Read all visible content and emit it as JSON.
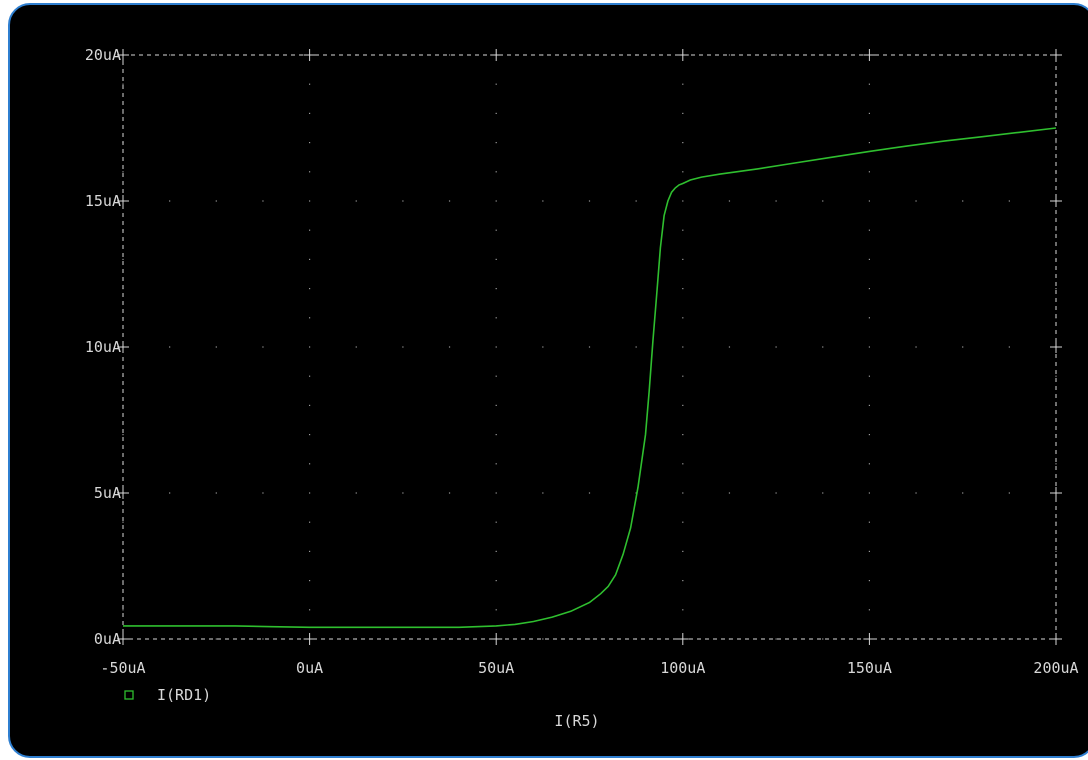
{
  "colors": {
    "background": "#000000",
    "axis": "#d8d8d8",
    "trace": "#2fbf2f",
    "border": "#2f7fd0"
  },
  "chart_data": {
    "type": "line",
    "xlabel": "I(R5)",
    "ylabel": "",
    "xlim": [
      -50,
      200
    ],
    "ylim": [
      0,
      20
    ],
    "x_unit": "uA",
    "y_unit": "uA",
    "x_ticks": [
      "-50uA",
      "0uA",
      "50uA",
      "100uA",
      "150uA",
      "200uA"
    ],
    "y_ticks": [
      "0uA",
      "5uA",
      "10uA",
      "15uA",
      "20uA"
    ],
    "grid": true,
    "legend": "bottom-left",
    "series": [
      {
        "name": "I(RD1)",
        "x": [
          -50,
          -40,
          -30,
          -20,
          -10,
          0,
          10,
          20,
          30,
          40,
          50,
          55,
          60,
          65,
          70,
          75,
          78,
          80,
          82,
          84,
          86,
          88,
          90,
          91,
          92,
          93,
          94,
          95,
          96,
          97,
          98,
          99,
          100,
          102,
          105,
          110,
          120,
          130,
          140,
          150,
          160,
          170,
          180,
          190,
          200
        ],
        "y": [
          0.45,
          0.45,
          0.45,
          0.45,
          0.42,
          0.4,
          0.4,
          0.4,
          0.4,
          0.4,
          0.45,
          0.5,
          0.6,
          0.75,
          0.95,
          1.25,
          1.55,
          1.8,
          2.2,
          2.9,
          3.8,
          5.2,
          7.0,
          8.5,
          10.2,
          11.8,
          13.4,
          14.5,
          15.0,
          15.3,
          15.45,
          15.55,
          15.6,
          15.72,
          15.82,
          15.92,
          16.1,
          16.3,
          16.5,
          16.7,
          16.88,
          17.05,
          17.2,
          17.35,
          17.5
        ]
      }
    ]
  }
}
